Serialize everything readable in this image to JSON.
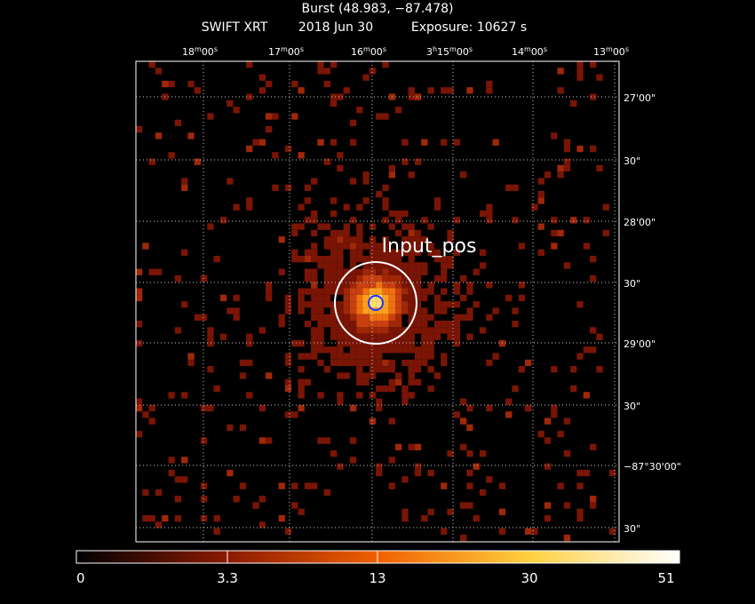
{
  "header": {
    "title": "Burst (48.983, −87.478)",
    "instrument": "SWIFT XRT",
    "date": "2018 Jun 30",
    "exposure": "Exposure: 10627 s"
  },
  "ra_labels": [
    [
      "18",
      "m",
      "00",
      "s"
    ],
    [
      "17",
      "m",
      "00",
      "s"
    ],
    [
      "16",
      "m",
      "00",
      "s"
    ],
    [
      "3",
      "h",
      "15",
      "m",
      "00",
      "s"
    ],
    [
      "14",
      "m",
      "00",
      "s"
    ],
    [
      "13",
      "m",
      "00",
      "s"
    ]
  ],
  "dec_labels": [
    "27'00\"",
    "30\"",
    "28'00\"",
    "30\"",
    "29'00\"",
    "30\"",
    "−87°30'00\"",
    "30\""
  ],
  "annotation": "Input_pos",
  "colorbar_ticks": [
    0,
    3.3,
    13,
    30,
    51
  ]
}
